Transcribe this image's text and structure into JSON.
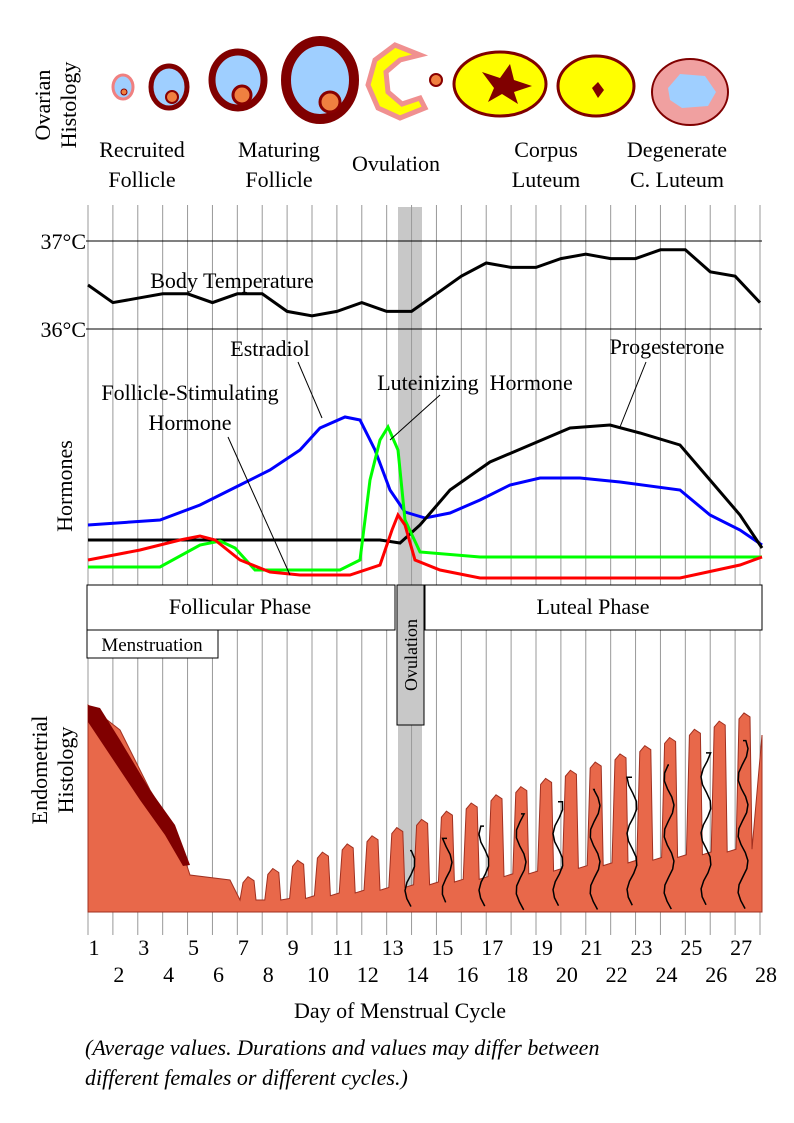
{
  "ovarian_histology": {
    "title": [
      "Ovarian",
      "Histology"
    ],
    "stages": [
      [
        "Recruited",
        "Follicle"
      ],
      [
        "Maturing",
        "Follicle"
      ],
      [
        "Ovulation"
      ],
      [
        "Corpus",
        "Luteum"
      ],
      [
        "Degenerate",
        "C. Luteum"
      ]
    ]
  },
  "temperature": {
    "label": "Body Temperature",
    "values": [
      36.5,
      36.3,
      36.35,
      36.4,
      36.4,
      36.3,
      36.4,
      36.4,
      36.2,
      36.15,
      36.2,
      36.3,
      36.2,
      36.2,
      36.4,
      36.6,
      36.75,
      36.7,
      36.7,
      36.8,
      36.85,
      36.8,
      36.8,
      36.9,
      36.9,
      36.65,
      36.6,
      36.3
    ],
    "ylim": [
      36,
      37
    ],
    "yticks": [
      {
        "value": 36,
        "label": "36°C"
      },
      {
        "value": 37,
        "label": "37°C"
      }
    ]
  },
  "hormones": {
    "title": "Hormones",
    "labels": {
      "estradiol": "Estradiol",
      "progesterone": "Progesterone",
      "lh": "Luteinizing  Hormone",
      "fsh": [
        "Follicle-Stimulating",
        "Hormone"
      ]
    }
  },
  "phases": {
    "follicular": "Follicular Phase",
    "luteal": "Luteal Phase",
    "ovulation": "Ovulation",
    "menstruation": "Menstruation"
  },
  "endometrium": {
    "title": [
      "Endometrial",
      "Histology"
    ]
  },
  "x_axis": {
    "days": [
      1,
      2,
      3,
      4,
      5,
      6,
      7,
      8,
      9,
      10,
      11,
      12,
      13,
      14,
      15,
      16,
      17,
      18,
      19,
      20,
      21,
      22,
      23,
      24,
      25,
      26,
      27,
      28
    ],
    "title": "Day of Menstrual Cycle"
  },
  "note": [
    "(Average values. Durations and values may differ between",
    "different females or different cycles.)"
  ]
}
